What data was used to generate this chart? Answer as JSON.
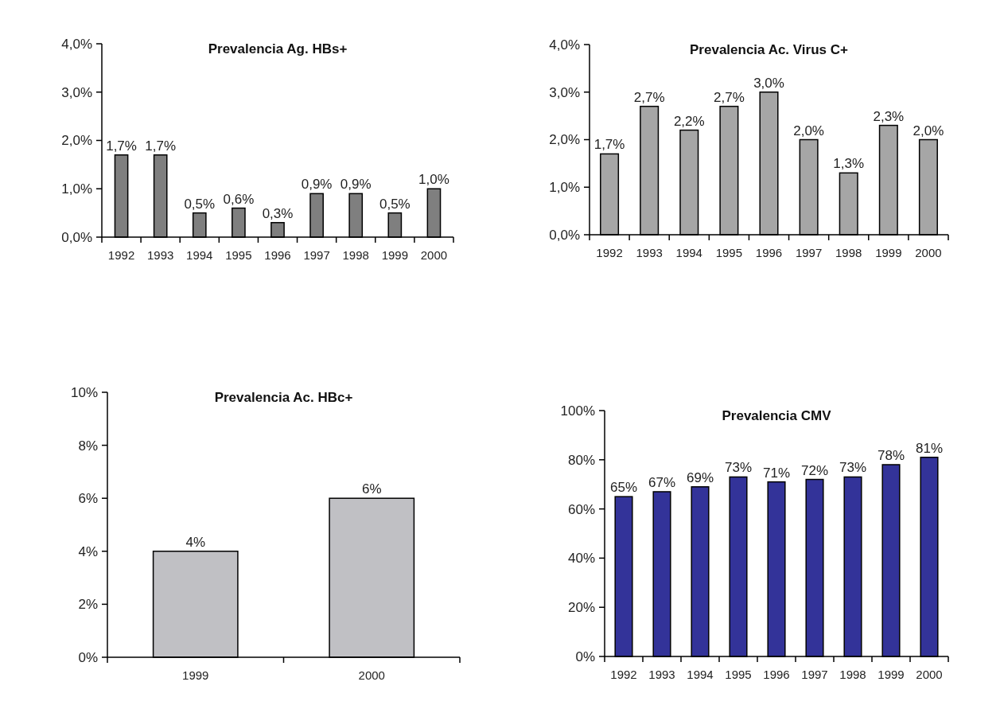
{
  "chart_data": [
    {
      "type": "bar",
      "title": "Prevalencia Ag. HBs+",
      "categories": [
        "1992",
        "1993",
        "1994",
        "1995",
        "1996",
        "1997",
        "1998",
        "1999",
        "2000"
      ],
      "values": [
        1.7,
        1.7,
        0.5,
        0.6,
        0.3,
        0.9,
        0.9,
        0.5,
        1.0
      ],
      "value_labels": [
        "1,7%",
        "1,7%",
        "0,5%",
        "0,6%",
        "0,3%",
        "0,9%",
        "0,9%",
        "0,5%",
        "1,0%"
      ],
      "color": "#7f7f7f",
      "ylim": [
        0,
        4
      ],
      "yticks": [
        {
          "value": 0,
          "label": "0,0%"
        },
        {
          "value": 1,
          "label": "1,0%"
        },
        {
          "value": 2,
          "label": "2,0%"
        },
        {
          "value": 3,
          "label": "3,0%"
        },
        {
          "value": 4,
          "label": "4,0%"
        }
      ],
      "grid": false
    },
    {
      "type": "bar",
      "title": "Prevalencia Ac. Virus C+",
      "categories": [
        "1992",
        "1993",
        "1994",
        "1995",
        "1996",
        "1997",
        "1998",
        "1999",
        "2000"
      ],
      "values": [
        1.7,
        2.7,
        2.2,
        2.7,
        3.0,
        2.0,
        1.3,
        2.3,
        2.0
      ],
      "value_labels": [
        "1,7%",
        "2,7%",
        "2,2%",
        "2,7%",
        "3,0%",
        "2,0%",
        "1,3%",
        "2,3%",
        "2,0%"
      ],
      "color": "#a6a6a6",
      "ylim": [
        0,
        4
      ],
      "yticks": [
        {
          "value": 0,
          "label": "0,0%"
        },
        {
          "value": 1,
          "label": "1,0%"
        },
        {
          "value": 2,
          "label": "2,0%"
        },
        {
          "value": 3,
          "label": "3,0%"
        },
        {
          "value": 4,
          "label": "4,0%"
        }
      ],
      "grid": false
    },
    {
      "type": "bar",
      "title": "Prevalencia Ac. HBc+",
      "categories": [
        "1999",
        "2000"
      ],
      "values": [
        4,
        6
      ],
      "value_labels": [
        "4%",
        "6%"
      ],
      "color": "#c0c0c4",
      "ylim": [
        0,
        10
      ],
      "yticks": [
        {
          "value": 0,
          "label": "0%"
        },
        {
          "value": 2,
          "label": "2%"
        },
        {
          "value": 4,
          "label": "4%"
        },
        {
          "value": 6,
          "label": "6%"
        },
        {
          "value": 8,
          "label": "8%"
        },
        {
          "value": 10,
          "label": "10%"
        }
      ],
      "grid": false
    },
    {
      "type": "bar",
      "title": "Prevalencia CMV",
      "categories": [
        "1992",
        "1993",
        "1994",
        "1995",
        "1996",
        "1997",
        "1998",
        "1999",
        "2000"
      ],
      "values": [
        65,
        67,
        69,
        73,
        71,
        72,
        73,
        78,
        81
      ],
      "value_labels": [
        "65%",
        "67%",
        "69%",
        "73%",
        "71%",
        "72%",
        "73%",
        "78%",
        "81%"
      ],
      "color": "#333399",
      "ylim": [
        0,
        100
      ],
      "yticks": [
        {
          "value": 0,
          "label": "0%"
        },
        {
          "value": 20,
          "label": "20%"
        },
        {
          "value": 40,
          "label": "40%"
        },
        {
          "value": 60,
          "label": "60%"
        },
        {
          "value": 80,
          "label": "80%"
        },
        {
          "value": 100,
          "label": "100%"
        }
      ],
      "grid": false
    }
  ]
}
